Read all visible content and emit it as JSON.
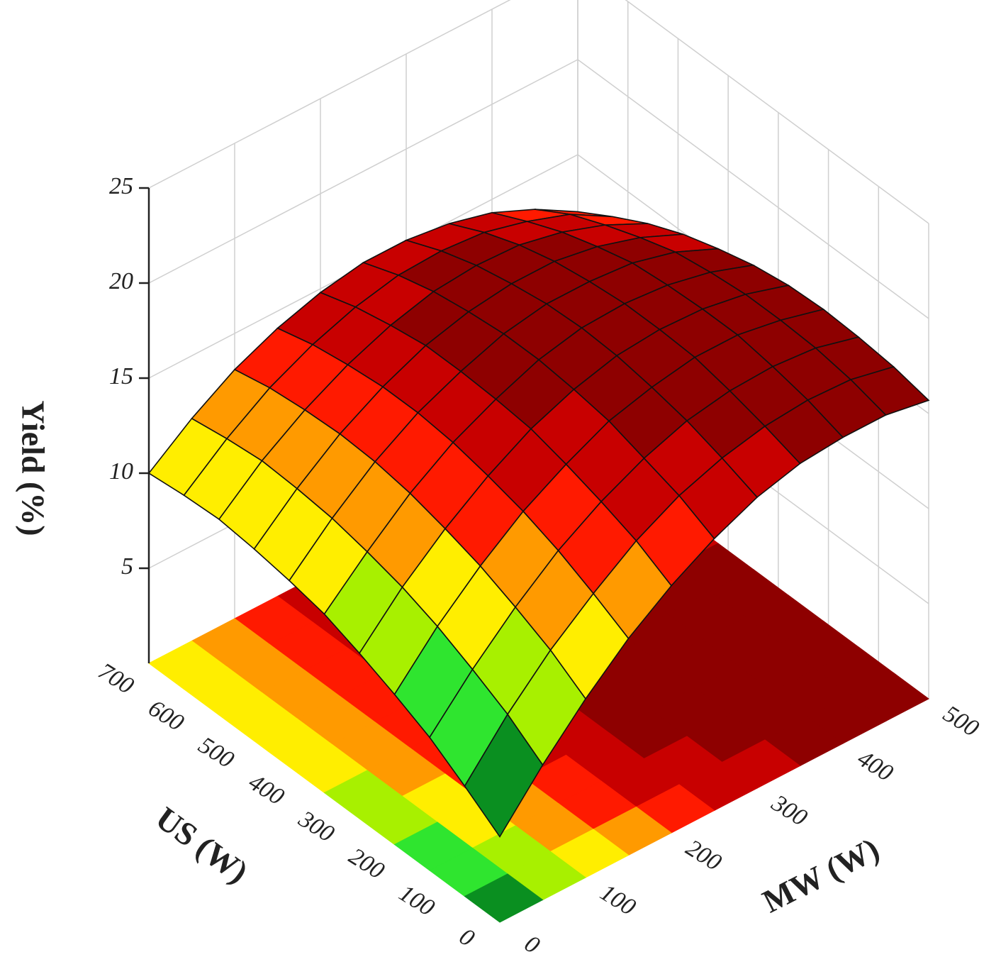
{
  "chart_data": {
    "type": "surface",
    "xlabel": "US (W)",
    "ylabel": "MW (W)",
    "zlabel": "Yield (%)",
    "x": [
      0,
      70,
      140,
      210,
      280,
      350,
      420,
      490,
      560,
      630,
      700
    ],
    "y": [
      0,
      50,
      100,
      150,
      200,
      250,
      300,
      350,
      400,
      450,
      500
    ],
    "z": [
      [
        4.5,
        7.1,
        9.4,
        11.4,
        13.0,
        14.3,
        15.3,
        15.9,
        16.1,
        16.1,
        15.7
      ],
      [
        5.8,
        8.4,
        10.6,
        12.4,
        14.0,
        15.2,
        16.0,
        16.5,
        16.7,
        16.6,
        16.1
      ],
      [
        7.0,
        9.4,
        11.5,
        13.3,
        14.7,
        15.8,
        16.6,
        17.0,
        17.1,
        16.9,
        16.3
      ],
      [
        7.9,
        10.3,
        12.3,
        14.0,
        15.3,
        16.4,
        17.0,
        17.4,
        17.4,
        17.0,
        16.4
      ],
      [
        8.7,
        11.0,
        12.9,
        14.5,
        15.8,
        16.7,
        17.3,
        17.5,
        17.4,
        17.0,
        16.3
      ],
      [
        9.4,
        11.5,
        13.4,
        14.9,
        16.0,
        16.9,
        17.4,
        17.5,
        17.3,
        16.8,
        16.0
      ],
      [
        9.8,
        11.9,
        13.7,
        15.1,
        16.1,
        16.9,
        17.3,
        17.3,
        17.1,
        16.5,
        15.5
      ],
      [
        10.1,
        12.1,
        13.8,
        15.1,
        16.1,
        16.7,
        17.0,
        17.0,
        16.6,
        15.9,
        14.9
      ],
      [
        10.3,
        12.2,
        13.7,
        14.9,
        15.8,
        16.4,
        16.6,
        16.5,
        16.0,
        15.2,
        14.1
      ],
      [
        10.2,
        12.0,
        13.5,
        14.6,
        15.4,
        15.9,
        16.0,
        15.8,
        15.2,
        14.4,
        13.1
      ],
      [
        10.0,
        11.7,
        13.1,
        14.1,
        14.8,
        15.2,
        15.2,
        14.9,
        14.3,
        13.3,
        12.0
      ]
    ],
    "xlim": [
      0,
      700
    ],
    "xticks": [
      0,
      100,
      200,
      300,
      400,
      500,
      600,
      700
    ],
    "ylim": [
      0,
      500
    ],
    "yticks": [
      0,
      100,
      200,
      300,
      400,
      500
    ],
    "zlim": [
      0,
      25
    ],
    "zticks": [
      5,
      10,
      15,
      20,
      25
    ],
    "grid": true,
    "colormap": [
      "#0b4d22",
      "#0a8f20",
      "#2fe52f",
      "#a8f000",
      "#ffee00",
      "#ff9a00",
      "#ff1a00",
      "#c80000",
      "#8e0000"
    ]
  }
}
